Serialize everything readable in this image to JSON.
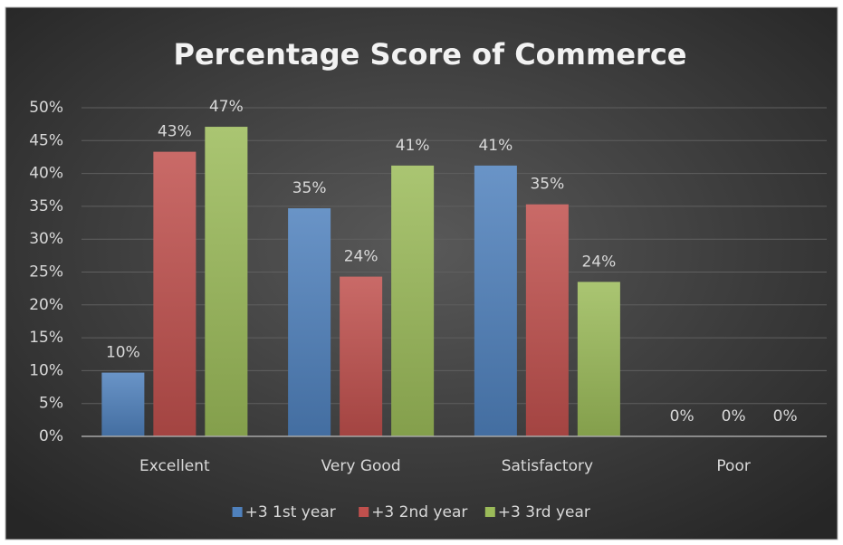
{
  "chart_data": {
    "type": "bar",
    "title": "Percentage Score of Commerce",
    "categories": [
      "Excellent",
      "Very Good",
      "Satisfactory",
      "Poor"
    ],
    "series": [
      {
        "name": "+3 1st year",
        "color": "#4f81bd",
        "values": [
          9.7,
          34.7,
          41.2,
          0
        ],
        "value_labels": [
          "10%",
          "35%",
          "41%",
          "0%"
        ]
      },
      {
        "name": "+3 2nd year",
        "color": "#c0504d",
        "values": [
          43.3,
          24.3,
          35.3,
          0
        ],
        "value_labels": [
          "43%",
          "24%",
          "35%",
          "0%"
        ]
      },
      {
        "name": "+3 3rd year",
        "color": "#9bbb59",
        "values": [
          47.1,
          41.2,
          23.5,
          0
        ],
        "value_labels": [
          "47%",
          "41%",
          "24%",
          "0%"
        ]
      }
    ],
    "ylim": [
      0,
      50
    ],
    "yticks": [
      {
        "value": 0,
        "label": "0%"
      },
      {
        "value": 5,
        "label": "5%"
      },
      {
        "value": 10,
        "label": "10%"
      },
      {
        "value": 15,
        "label": "15%"
      },
      {
        "value": 20,
        "label": "20%"
      },
      {
        "value": 25,
        "label": "25%"
      },
      {
        "value": 30,
        "label": "30%"
      },
      {
        "value": 35,
        "label": "35%"
      },
      {
        "value": 40,
        "label": "40%"
      },
      {
        "value": 45,
        "label": "45%"
      },
      {
        "value": 50,
        "label": "50%"
      }
    ],
    "grid": true,
    "legend": "bottom"
  }
}
